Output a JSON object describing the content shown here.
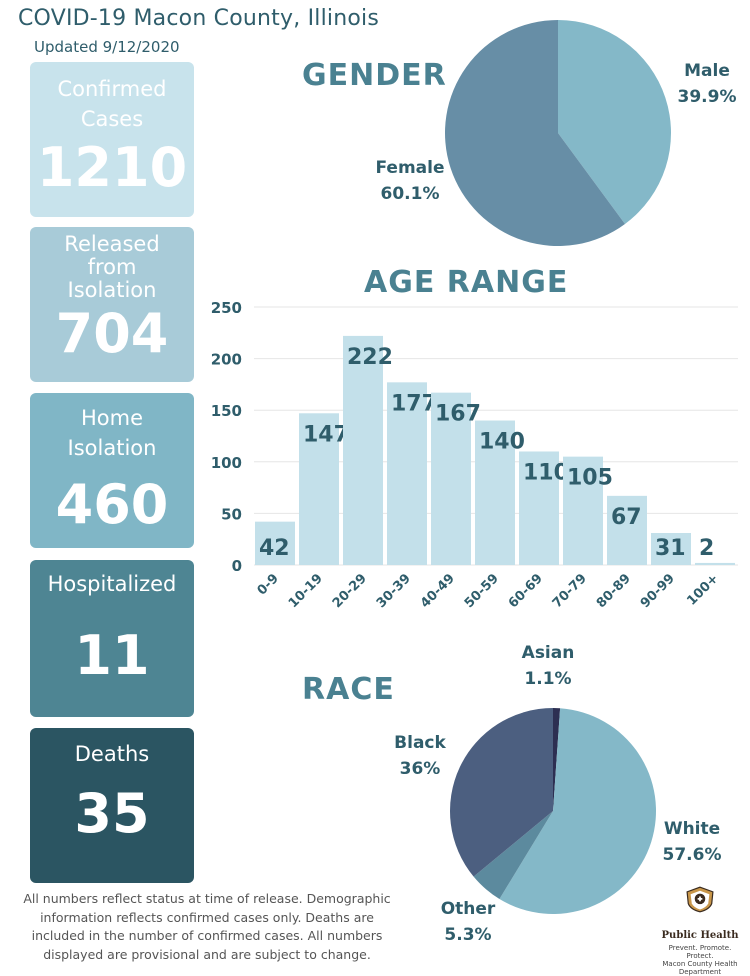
{
  "header": {
    "title": "COVID-19 Macon County, Illinois",
    "updated": "Updated 9/12/2020"
  },
  "stats": {
    "confirmed": {
      "label": "Confirmed Cases",
      "value": "1210"
    },
    "released": {
      "label": "Released from Isolation",
      "value": "704"
    },
    "home": {
      "label": "Home Isolation",
      "value": "460"
    },
    "hospitalized": {
      "label": "Hospitalized",
      "value": "11"
    },
    "deaths": {
      "label": "Deaths",
      "value": "35"
    }
  },
  "chart_data": [
    {
      "type": "pie",
      "title": "GENDER",
      "labels": [
        "Male",
        "Female"
      ],
      "values": [
        39.9,
        60.1
      ],
      "display": [
        "39.9%",
        "60.1%"
      ],
      "colors": [
        "#84b8c8",
        "#678ea6"
      ]
    },
    {
      "type": "bar",
      "title": "AGE RANGE",
      "categories": [
        "0-9",
        "10-19",
        "20-29",
        "30-39",
        "40-49",
        "50-59",
        "60-69",
        "70-79",
        "80-89",
        "90-99",
        "100+"
      ],
      "values": [
        42,
        147,
        222,
        177,
        167,
        140,
        110,
        105,
        67,
        31,
        2
      ],
      "ylim": [
        0,
        250
      ],
      "yticks": [
        0,
        50,
        100,
        150,
        200,
        250
      ],
      "grid": true,
      "bar_color": "#c3e0ea"
    },
    {
      "type": "pie",
      "title": "RACE",
      "labels": [
        "Asian",
        "White",
        "Other",
        "Black"
      ],
      "values": [
        1.1,
        57.6,
        5.3,
        36
      ],
      "display": [
        "1.1%",
        "57.6%",
        "5.3%",
        "36%"
      ],
      "colors": [
        "#2d2f52",
        "#84b8c8",
        "#5c8a9e",
        "#4c5f80"
      ]
    }
  ],
  "footnote": "All numbers reflect status at time of release. Demographic information reflects confirmed cases only. Deaths are included in the number of confirmed cases. All numbers displayed are provisional and are subject to change.",
  "logo": {
    "icon": "public-health-shield-icon",
    "name": "Public Health",
    "tagline": "Prevent. Promote. Protect.",
    "dept": "Macon County Health Department"
  }
}
